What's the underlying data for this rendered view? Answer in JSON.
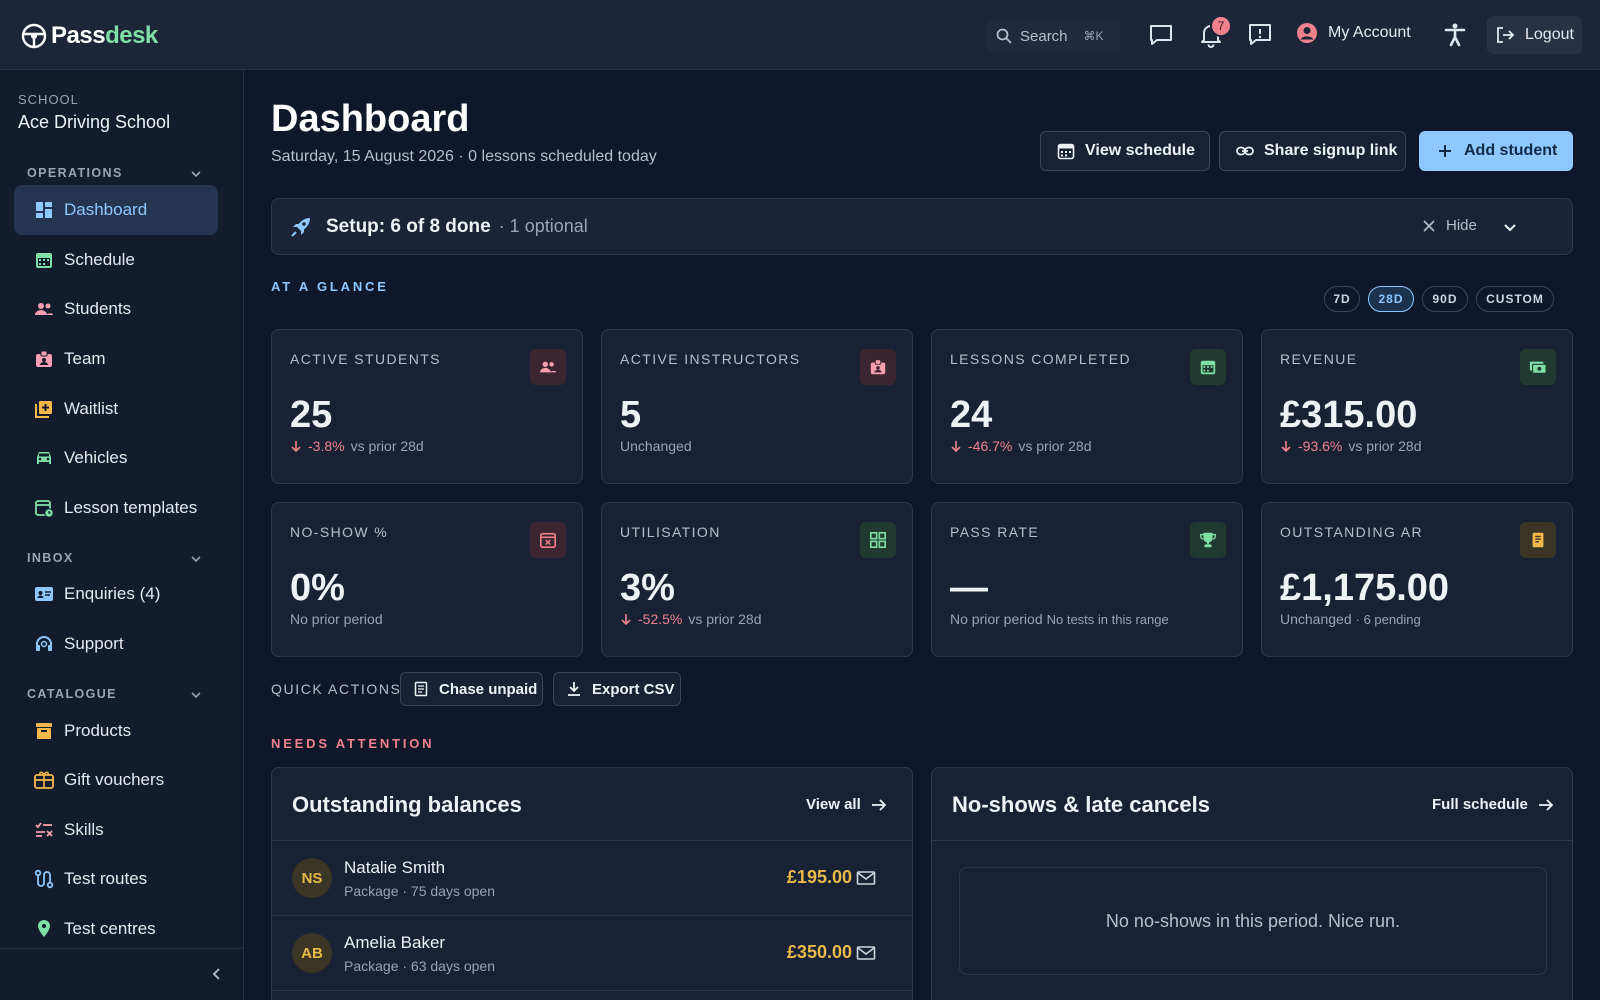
{
  "app": {
    "logo_part1": "Pass",
    "logo_part2": "desk",
    "search_placeholder": "Search",
    "search_shortcut": "⌘K",
    "notifications_count": "7",
    "account_label": "My Account",
    "logout_label": "Logout"
  },
  "sidebar": {
    "school_label": "SCHOOL",
    "school_name": "Ace Driving School",
    "sections": {
      "operations": "OPERATIONS",
      "inbox": "INBOX",
      "catalogue": "CATALOGUE"
    },
    "items": {
      "dashboard": "Dashboard",
      "schedule": "Schedule",
      "students": "Students",
      "team": "Team",
      "waitlist": "Waitlist",
      "vehicles": "Vehicles",
      "lesson_templates": "Lesson templates",
      "enquiries": "Enquiries (4)",
      "support": "Support",
      "products": "Products",
      "gift_vouchers": "Gift vouchers",
      "skills": "Skills",
      "test_routes": "Test routes",
      "test_centres": "Test centres"
    }
  },
  "header": {
    "title": "Dashboard",
    "subtitle": "Saturday, 15 August 2026 · 0 lessons scheduled today",
    "view_schedule": "View schedule",
    "share_signup": "Share signup link",
    "add_student": "Add student"
  },
  "setup": {
    "progress": "Setup: 6 of 8 done",
    "optional": "· 1 optional",
    "hide": "Hide"
  },
  "glance": {
    "label": "AT A GLANCE",
    "ranges": [
      "7D",
      "28D",
      "90D",
      "CUSTOM"
    ],
    "selected_range": "28D"
  },
  "cards": {
    "active_students": {
      "label": "ACTIVE STUDENTS",
      "value": "25",
      "delta": "-3.8%",
      "compare": "vs prior 28d"
    },
    "active_instructors": {
      "label": "ACTIVE INSTRUCTORS",
      "value": "5",
      "note": "Unchanged"
    },
    "lessons_completed": {
      "label": "LESSONS COMPLETED",
      "value": "24",
      "delta": "-46.7%",
      "compare": "vs prior 28d"
    },
    "revenue": {
      "label": "REVENUE",
      "value": "£315.00",
      "delta": "-93.6%",
      "compare": "vs prior 28d"
    },
    "no_show": {
      "label": "NO-SHOW %",
      "value": "0%",
      "note": "No prior period"
    },
    "utilisation": {
      "label": "UTILISATION",
      "value": "3%",
      "delta": "-52.5%",
      "compare": "vs prior 28d"
    },
    "pass_rate": {
      "label": "PASS RATE",
      "value": "—",
      "note": "No prior period",
      "extra": "No tests in this range"
    },
    "outstanding_ar": {
      "label": "OUTSTANDING AR",
      "value": "£1,175.00",
      "note": "Unchanged",
      "extra": "· 6 pending"
    }
  },
  "quick_actions": {
    "label": "QUICK ACTIONS",
    "chase_unpaid": "Chase unpaid",
    "export_csv": "Export CSV"
  },
  "attention": {
    "label": "NEEDS ATTENTION",
    "balances": {
      "title": "Outstanding balances",
      "link": "View all",
      "rows": [
        {
          "initials": "NS",
          "name": "Natalie Smith",
          "meta": "Package · 75 days open",
          "amount": "£195.00"
        },
        {
          "initials": "AB",
          "name": "Amelia Baker",
          "meta": "Package · 63 days open",
          "amount": "£350.00"
        }
      ]
    },
    "noshows": {
      "title": "No-shows & late cancels",
      "link": "Full schedule",
      "empty": "No no-shows in this period. Nice run."
    }
  },
  "colors": {
    "accent": "#8ec8ff",
    "negative": "#f0828d",
    "amount": "#e9b949",
    "brand_green": "#7fe0a6"
  }
}
